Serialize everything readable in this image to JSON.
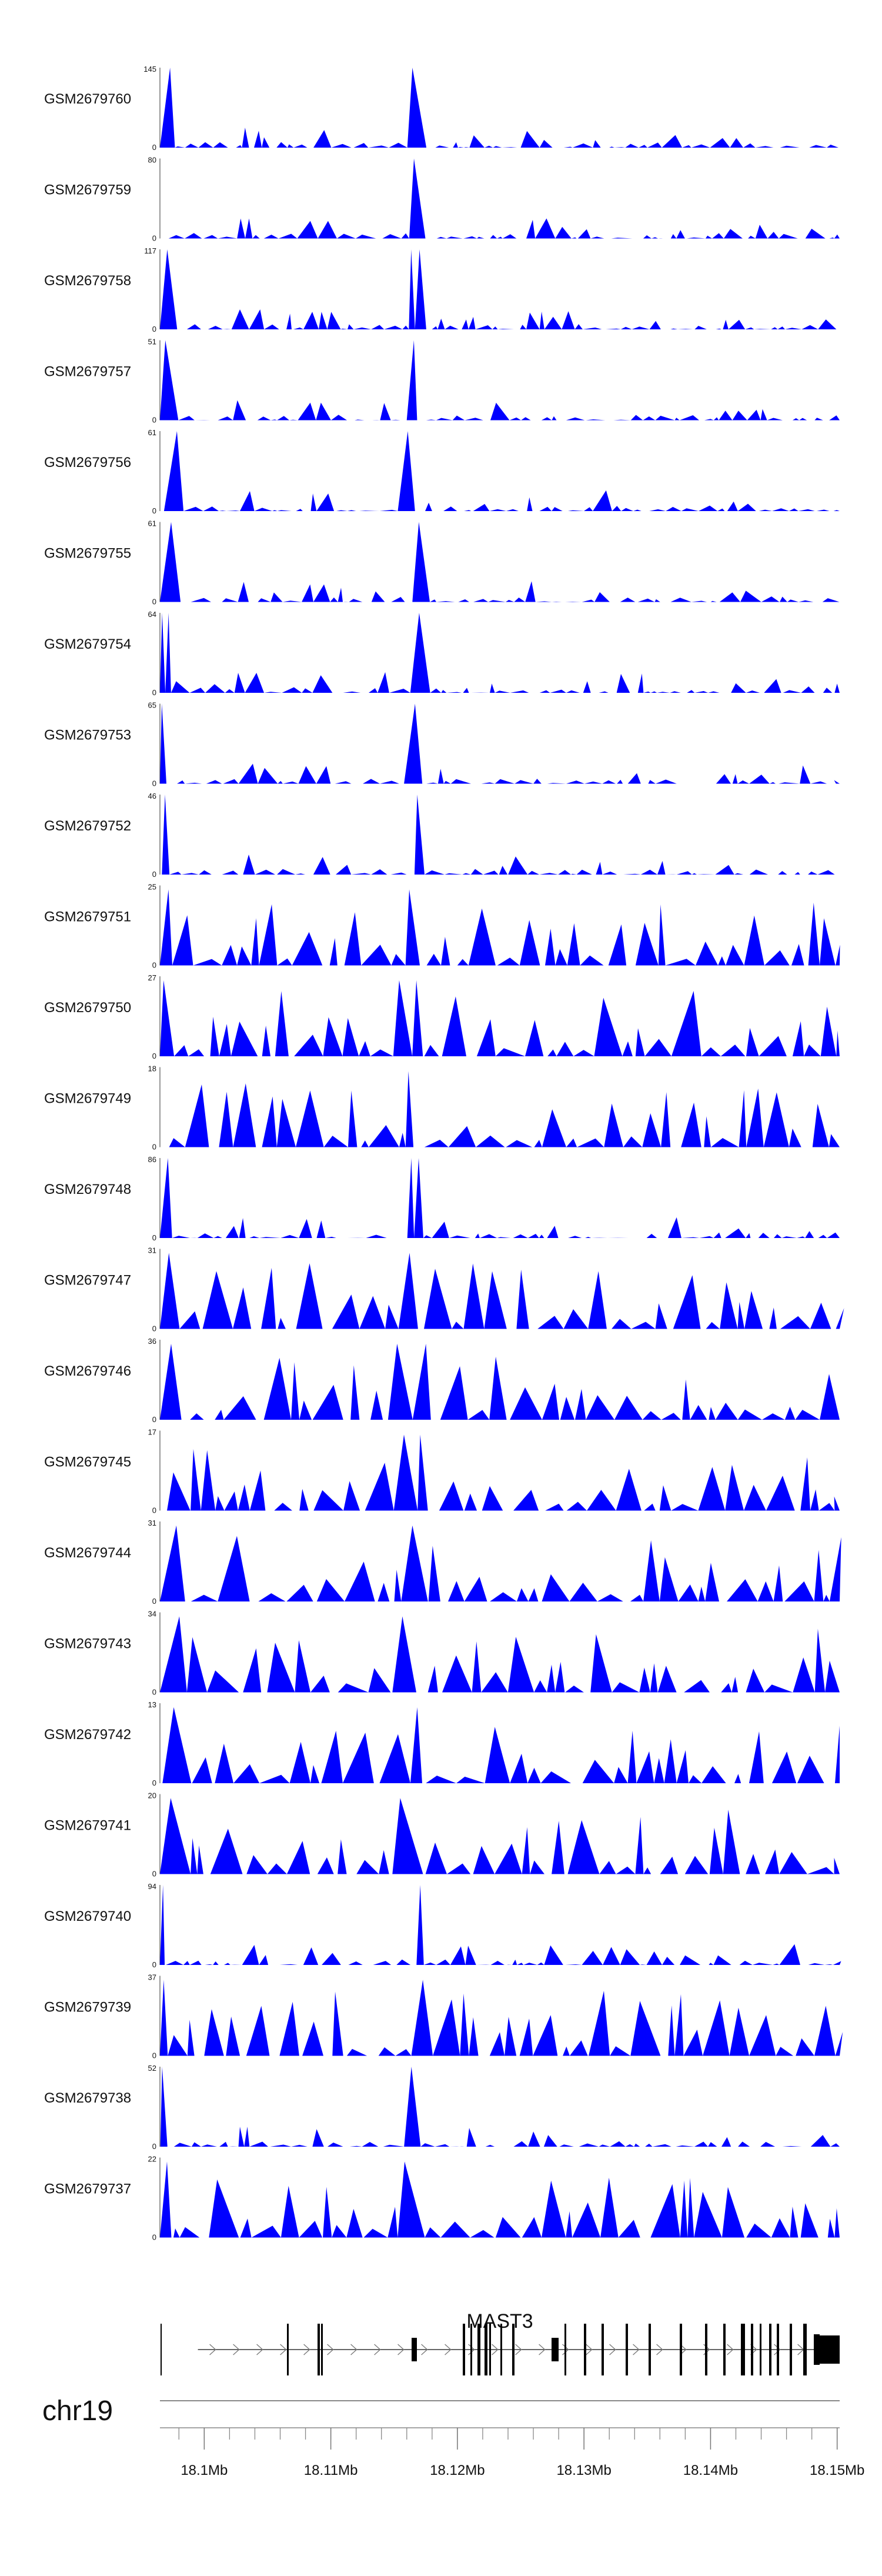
{
  "chart_data": {
    "type": "area",
    "title": "",
    "chromosome": "chr19",
    "gene": {
      "name": "MAST3",
      "strand": "+",
      "start_mb": 18.0995,
      "end_mb": 18.15
    },
    "x_axis": {
      "range_mb": [
        18.0965,
        18.1502
      ],
      "ticks": [
        "18.1Mb",
        "18.11Mb",
        "18.12Mb",
        "18.13Mb",
        "18.14Mb",
        "18.15Mb"
      ],
      "tick_values_mb": [
        18.1,
        18.11,
        18.12,
        18.13,
        18.14,
        18.15
      ]
    },
    "series": [
      {
        "name": "GSM2679760",
        "ymax": 145,
        "ymin_label": "0",
        "ymax_label": "145"
      },
      {
        "name": "GSM2679759",
        "ymax": 80,
        "ymin_label": "0",
        "ymax_label": "80"
      },
      {
        "name": "GSM2679758",
        "ymax": 117,
        "ymin_label": "0",
        "ymax_label": "117"
      },
      {
        "name": "GSM2679757",
        "ymax": 51,
        "ymin_label": "0",
        "ymax_label": "51"
      },
      {
        "name": "GSM2679756",
        "ymax": 61,
        "ymin_label": "0",
        "ymax_label": "61"
      },
      {
        "name": "GSM2679755",
        "ymax": 61,
        "ymin_label": "0",
        "ymax_label": "61"
      },
      {
        "name": "GSM2679754",
        "ymax": 64,
        "ymin_label": "0",
        "ymax_label": "64"
      },
      {
        "name": "GSM2679753",
        "ymax": 65,
        "ymin_label": "0",
        "ymax_label": "65"
      },
      {
        "name": "GSM2679752",
        "ymax": 46,
        "ymin_label": "0",
        "ymax_label": "46"
      },
      {
        "name": "GSM2679751",
        "ymax": 25,
        "ymin_label": "0",
        "ymax_label": "25"
      },
      {
        "name": "GSM2679750",
        "ymax": 27,
        "ymin_label": "0",
        "ymax_label": "27"
      },
      {
        "name": "GSM2679749",
        "ymax": 18,
        "ymin_label": "0",
        "ymax_label": "18"
      },
      {
        "name": "GSM2679748",
        "ymax": 86,
        "ymin_label": "0",
        "ymax_label": "86"
      },
      {
        "name": "GSM2679747",
        "ymax": 31,
        "ymin_label": "0",
        "ymax_label": "31"
      },
      {
        "name": "GSM2679746",
        "ymax": 36,
        "ymin_label": "0",
        "ymax_label": "36"
      },
      {
        "name": "GSM2679745",
        "ymax": 17,
        "ymin_label": "0",
        "ymax_label": "17"
      },
      {
        "name": "GSM2679744",
        "ymax": 31,
        "ymin_label": "0",
        "ymax_label": "31"
      },
      {
        "name": "GSM2679743",
        "ymax": 34,
        "ymin_label": "0",
        "ymax_label": "34"
      },
      {
        "name": "GSM2679742",
        "ymax": 13,
        "ymin_label": "0",
        "ymax_label": "13"
      },
      {
        "name": "GSM2679741",
        "ymax": 20,
        "ymin_label": "0",
        "ymax_label": "20"
      },
      {
        "name": "GSM2679740",
        "ymax": 94,
        "ymin_label": "0",
        "ymax_label": "94"
      },
      {
        "name": "GSM2679739",
        "ymax": 37,
        "ymin_label": "0",
        "ymax_label": "37"
      },
      {
        "name": "GSM2679738",
        "ymax": 52,
        "ymin_label": "0",
        "ymax_label": "52"
      },
      {
        "name": "GSM2679737",
        "ymax": 22,
        "ymin_label": "0",
        "ymax_label": "22"
      }
    ],
    "fill_color": "#0000ff"
  }
}
